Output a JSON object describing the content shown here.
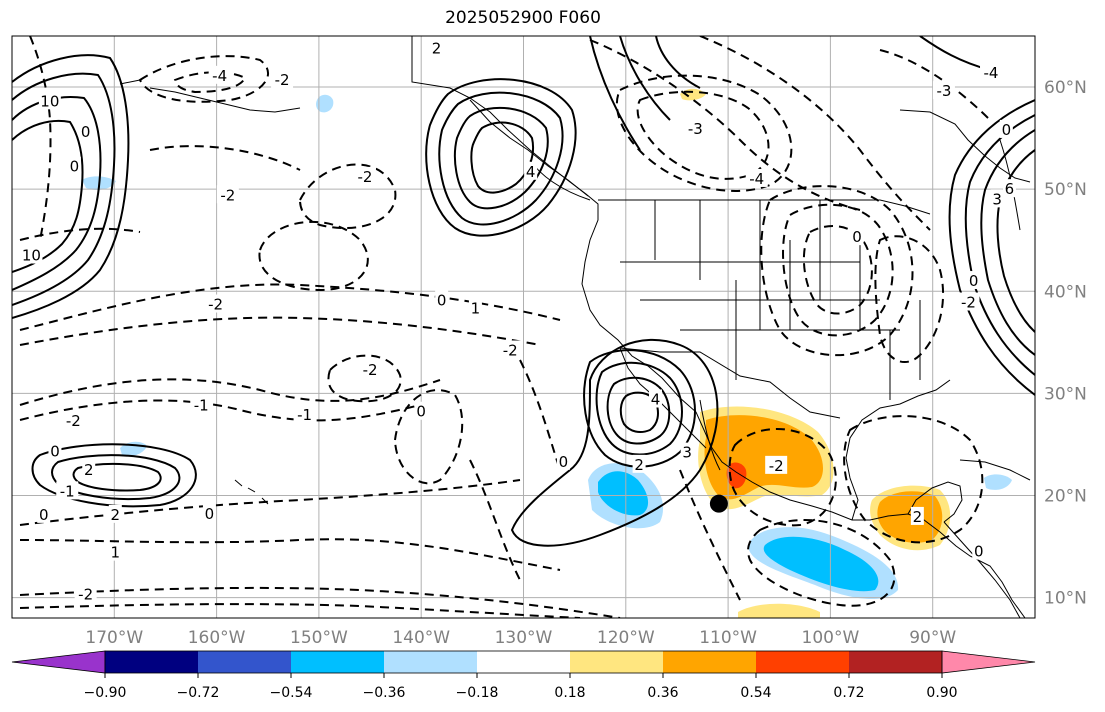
{
  "title": "2025052900 F060",
  "map": {
    "lon_range": [
      -180,
      -80
    ],
    "lat_range": [
      8,
      65
    ],
    "lon_ticks": [
      {
        "value": -170,
        "label": "170°W"
      },
      {
        "value": -160,
        "label": "160°W"
      },
      {
        "value": -150,
        "label": "150°W"
      },
      {
        "value": -140,
        "label": "140°W"
      },
      {
        "value": -130,
        "label": "130°W"
      },
      {
        "value": -120,
        "label": "120°W"
      },
      {
        "value": -110,
        "label": "110°W"
      },
      {
        "value": -100,
        "label": "100°W"
      },
      {
        "value": -90,
        "label": "90°W"
      }
    ],
    "lat_ticks": [
      {
        "value": 10,
        "label": "10°N"
      },
      {
        "value": 20,
        "label": "20°N"
      },
      {
        "value": 30,
        "label": "30°N"
      },
      {
        "value": 40,
        "label": "40°N"
      },
      {
        "value": 50,
        "label": "50°N"
      },
      {
        "value": 60,
        "label": "60°N"
      }
    ],
    "grid": true,
    "marker": {
      "lon": -110.9,
      "lat": 19.2,
      "color": "#000000"
    }
  },
  "colorbar": {
    "boundaries": [
      "",
      "−0.90",
      "−0.72",
      "−0.54",
      "−0.36",
      "−0.18",
      "0.18",
      "0.36",
      "0.54",
      "0.72",
      "0.90",
      ""
    ],
    "colors": [
      "#9933cc",
      "#000080",
      "#3355cc",
      "#00bfff",
      "#b0e0ff",
      "#ffffff",
      "#ffe680",
      "#ffa500",
      "#ff4000",
      "#b22222",
      "#ff88aa"
    ],
    "extend": "both"
  },
  "contour_labels": [
    {
      "text": "2",
      "lon": -138.5,
      "lat": 63.8
    },
    {
      "text": "-4",
      "lon": -159.7,
      "lat": 61.1
    },
    {
      "text": "-2",
      "lon": -153.6,
      "lat": 60.7
    },
    {
      "text": "10",
      "lon": -176.3,
      "lat": 58.6
    },
    {
      "text": "-2",
      "lon": -158.9,
      "lat": 49.4
    },
    {
      "text": "-2",
      "lon": -145.5,
      "lat": 51.2
    },
    {
      "text": "0",
      "lon": -172.8,
      "lat": 55.6
    },
    {
      "text": "0",
      "lon": -173.9,
      "lat": 52.2
    },
    {
      "text": "10",
      "lon": -178.1,
      "lat": 43.5
    },
    {
      "text": "-2",
      "lon": -160.1,
      "lat": 38.7
    },
    {
      "text": "0",
      "lon": -138.0,
      "lat": 39.1
    },
    {
      "text": "1",
      "lon": -134.7,
      "lat": 38.3
    },
    {
      "text": "-2",
      "lon": -131.3,
      "lat": 34.2
    },
    {
      "text": "-2",
      "lon": -145.0,
      "lat": 32.3
    },
    {
      "text": "0",
      "lon": -140.0,
      "lat": 28.2
    },
    {
      "text": "-1",
      "lon": -161.5,
      "lat": 28.8
    },
    {
      "text": "-1",
      "lon": -151.4,
      "lat": 27.9
    },
    {
      "text": "-2",
      "lon": -174.0,
      "lat": 27.3
    },
    {
      "text": "0",
      "lon": -175.8,
      "lat": 24.3
    },
    {
      "text": "2",
      "lon": -172.5,
      "lat": 22.5
    },
    {
      "text": "-1",
      "lon": -174.6,
      "lat": 20.4
    },
    {
      "text": "0",
      "lon": -176.9,
      "lat": 18.1
    },
    {
      "text": "2",
      "lon": -169.9,
      "lat": 18.1
    },
    {
      "text": "0",
      "lon": -160.7,
      "lat": 18.2
    },
    {
      "text": "1",
      "lon": -169.9,
      "lat": 14.4
    },
    {
      "text": "-2",
      "lon": -172.8,
      "lat": 10.3
    },
    {
      "text": "4",
      "lon": -117.1,
      "lat": 29.4
    },
    {
      "text": "3",
      "lon": -114.0,
      "lat": 24.2
    },
    {
      "text": "2",
      "lon": -118.7,
      "lat": 23.0
    },
    {
      "text": "0",
      "lon": -126.1,
      "lat": 23.3
    },
    {
      "text": "4",
      "lon": -129.3,
      "lat": 51.7
    },
    {
      "text": "-3",
      "lon": -113.2,
      "lat": 55.9
    },
    {
      "text": "-4",
      "lon": -107.2,
      "lat": 51.0
    },
    {
      "text": "0",
      "lon": -97.4,
      "lat": 45.3
    },
    {
      "text": "-2",
      "lon": -105.3,
      "lat": 22.9
    },
    {
      "text": "-3",
      "lon": -88.9,
      "lat": 59.6
    },
    {
      "text": "-4",
      "lon": -84.3,
      "lat": 61.4
    },
    {
      "text": "0",
      "lon": -82.8,
      "lat": 55.8
    },
    {
      "text": "3",
      "lon": -83.7,
      "lat": 49.0
    },
    {
      "text": "6",
      "lon": -82.5,
      "lat": 50.0
    },
    {
      "text": "-2",
      "lon": -86.5,
      "lat": 38.9
    },
    {
      "text": "0",
      "lon": -86.0,
      "lat": 41.0
    },
    {
      "text": "2",
      "lon": -91.5,
      "lat": 17.9
    },
    {
      "text": "0",
      "lon": -85.5,
      "lat": 14.5
    }
  ]
}
